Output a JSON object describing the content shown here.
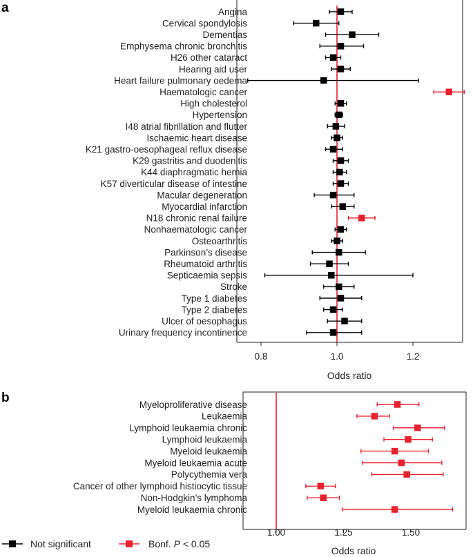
{
  "colors": {
    "not_significant": "#000000",
    "significant": "#e8212e",
    "reference_line": "#e8212e",
    "axis": "#231f20"
  },
  "legend": {
    "not_significant": "Not significant",
    "significant_prefix": "Bonf. ",
    "significant_p": "P",
    "significant_suffix": " < 0.05"
  },
  "chart_data": [
    {
      "panel": "a",
      "type": "scatter",
      "style": "forest plot (point estimate with confidence interval)",
      "xlabel": "Odds ratio",
      "xlim": [
        0.75,
        1.35
      ],
      "xticks": [
        0.8,
        1.0,
        1.2
      ],
      "xtick_labels": [
        "0.8",
        "1.0",
        "1.2"
      ],
      "reference_x": 1.0,
      "rows": [
        {
          "label": "Angina",
          "or": 1.01,
          "lo": 0.98,
          "hi": 1.04,
          "sig": false
        },
        {
          "label": "Cervical spondylosis",
          "or": 0.945,
          "lo": 0.885,
          "hi": 1.005,
          "sig": false
        },
        {
          "label": "Dementias",
          "or": 1.04,
          "lo": 0.97,
          "hi": 1.11,
          "sig": false
        },
        {
          "label": "Emphysema chronic bronchitis",
          "or": 1.01,
          "lo": 0.955,
          "hi": 1.07,
          "sig": false
        },
        {
          "label": "H26 other cataract",
          "or": 0.99,
          "lo": 0.97,
          "hi": 1.01,
          "sig": false
        },
        {
          "label": "Hearing aid user",
          "or": 1.01,
          "lo": 0.985,
          "hi": 1.035,
          "sig": false
        },
        {
          "label": "Heart failure pulmonary oedema",
          "or": 0.965,
          "lo": 0.765,
          "hi": 1.215,
          "sig": false
        },
        {
          "label": "Haematologic cancer",
          "or": 1.295,
          "lo": 1.255,
          "hi": 1.335,
          "sig": true
        },
        {
          "label": "High cholesterol",
          "or": 1.01,
          "lo": 0.995,
          "hi": 1.025,
          "sig": false
        },
        {
          "label": "Hypertension",
          "or": 1.005,
          "lo": 0.995,
          "hi": 1.015,
          "sig": false
        },
        {
          "label": "I48 atrial fibrillation and flutter",
          "or": 0.997,
          "lo": 0.975,
          "hi": 1.02,
          "sig": false
        },
        {
          "label": "Ischaemic heart disease",
          "or": 1.0,
          "lo": 0.985,
          "hi": 1.015,
          "sig": false
        },
        {
          "label": "K21 gastro-oesophageal reflux disease",
          "or": 0.99,
          "lo": 0.97,
          "hi": 1.015,
          "sig": false
        },
        {
          "label": "K29 gastritis and duodenitis",
          "or": 1.01,
          "lo": 0.99,
          "hi": 1.03,
          "sig": false
        },
        {
          "label": "K44 diaphragmatic hernia",
          "or": 1.007,
          "lo": 0.99,
          "hi": 1.025,
          "sig": false
        },
        {
          "label": "K57 diverticular disease of intestine",
          "or": 1.01,
          "lo": 0.99,
          "hi": 1.03,
          "sig": false
        },
        {
          "label": "Macular degeneration",
          "or": 0.99,
          "lo": 0.94,
          "hi": 1.045,
          "sig": false
        },
        {
          "label": "Myocardial infarction",
          "or": 1.015,
          "lo": 0.985,
          "hi": 1.045,
          "sig": false
        },
        {
          "label": "N18 chronic renal failure",
          "or": 1.065,
          "lo": 1.03,
          "hi": 1.1,
          "sig": true
        },
        {
          "label": "Nonhaematologic cancer",
          "or": 1.01,
          "lo": 0.995,
          "hi": 1.025,
          "sig": false
        },
        {
          "label": "Osteoarthritis",
          "or": 1.0,
          "lo": 0.985,
          "hi": 1.015,
          "sig": false
        },
        {
          "label": "Parkinson’s disease",
          "or": 1.005,
          "lo": 0.935,
          "hi": 1.075,
          "sig": false
        },
        {
          "label": "Rheumatoid arthritis",
          "or": 0.98,
          "lo": 0.93,
          "hi": 1.03,
          "sig": false
        },
        {
          "label": "Septicaemia sepsis",
          "or": 0.985,
          "lo": 0.81,
          "hi": 1.2,
          "sig": false
        },
        {
          "label": "Stroke",
          "or": 1.005,
          "lo": 0.965,
          "hi": 1.045,
          "sig": false
        },
        {
          "label": "Type 1 diabetes",
          "or": 1.01,
          "lo": 0.955,
          "hi": 1.065,
          "sig": false
        },
        {
          "label": "Type 2 diabetes",
          "or": 0.99,
          "lo": 0.965,
          "hi": 1.015,
          "sig": false
        },
        {
          "label": "Ulcer of oesophagus",
          "or": 1.02,
          "lo": 0.975,
          "hi": 1.065,
          "sig": false
        },
        {
          "label": "Urinary frequency incontinence",
          "or": 0.99,
          "lo": 0.92,
          "hi": 1.065,
          "sig": false
        }
      ]
    },
    {
      "panel": "b",
      "type": "scatter",
      "style": "forest plot (point estimate with confidence interval)",
      "xlabel": "Odds ratio",
      "xlim": [
        0.8,
        1.72
      ],
      "xticks": [
        1.0,
        1.25,
        1.5
      ],
      "xtick_labels": [
        "1.00",
        "1.25",
        "1.50"
      ],
      "reference_x": 1.0,
      "rows": [
        {
          "label": "Myeloproliferative disease",
          "or": 1.45,
          "lo": 1.375,
          "hi": 1.53,
          "sig": true
        },
        {
          "label": "Leukaemia",
          "or": 1.365,
          "lo": 1.3,
          "hi": 1.42,
          "sig": true
        },
        {
          "label": "Lymphoid leukaemia chronic",
          "or": 1.525,
          "lo": 1.435,
          "hi": 1.625,
          "sig": true
        },
        {
          "label": "Lymphoid leukaemia",
          "or": 1.49,
          "lo": 1.4,
          "hi": 1.58,
          "sig": true
        },
        {
          "label": "Myeloid leukaemia",
          "or": 1.44,
          "lo": 1.315,
          "hi": 1.565,
          "sig": true
        },
        {
          "label": "Myeloid leukaemia acute",
          "or": 1.465,
          "lo": 1.32,
          "hi": 1.615,
          "sig": true
        },
        {
          "label": "Polycythemia vera",
          "or": 1.485,
          "lo": 1.355,
          "hi": 1.62,
          "sig": true
        },
        {
          "label": "Cancer of other lymphoid histiocytic tissue",
          "or": 1.165,
          "lo": 1.11,
          "hi": 1.22,
          "sig": true
        },
        {
          "label": "Non-Hodgkin’s lymphoma",
          "or": 1.175,
          "lo": 1.115,
          "hi": 1.235,
          "sig": true
        },
        {
          "label": "Myeloid leukaemia chronic",
          "or": 1.44,
          "lo": 1.245,
          "hi": 1.655,
          "sig": true
        }
      ]
    }
  ]
}
